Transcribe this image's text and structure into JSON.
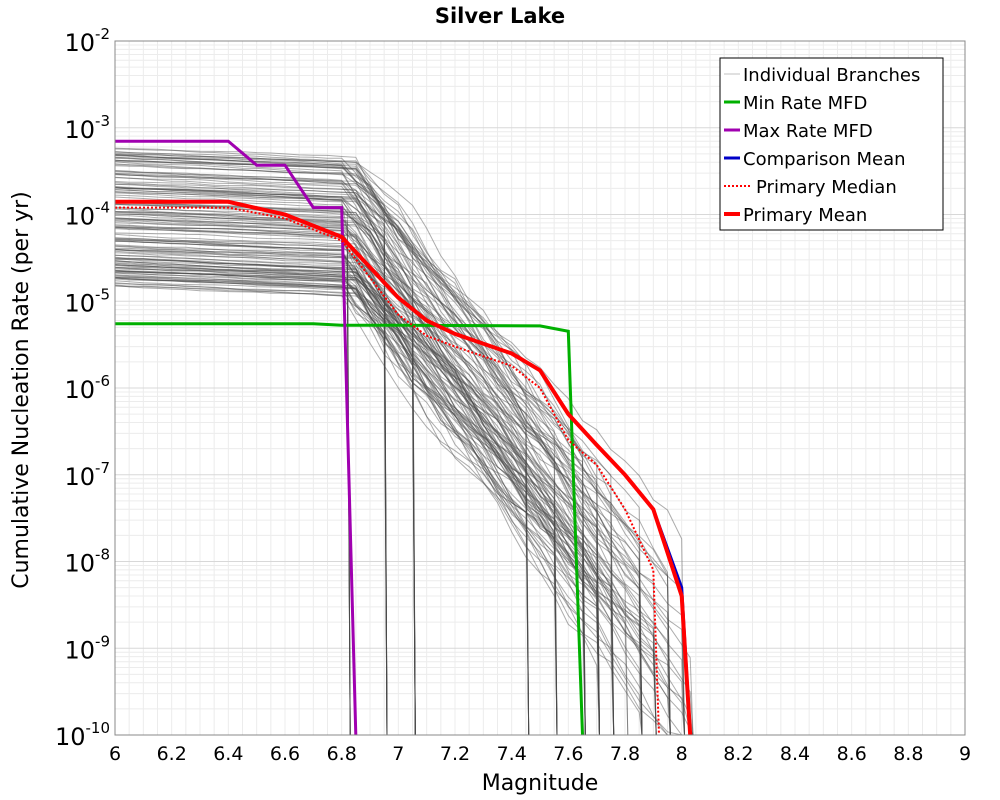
{
  "chart_data": {
    "type": "line",
    "title": "Silver Lake",
    "xlabel": "Magnitude",
    "ylabel": "Cumulative Nucleation Rate (per yr)",
    "xlim": [
      6,
      9
    ],
    "ylim": [
      1e-10,
      0.01
    ],
    "y_scale": "log",
    "grid": true,
    "legend_position": "top-right",
    "x_ticks": [
      "6",
      "6.2",
      "6.4",
      "6.6",
      "6.8",
      "7",
      "7.2",
      "7.4",
      "7.6",
      "7.8",
      "8",
      "8.2",
      "8.4",
      "8.6",
      "8.8",
      "9"
    ],
    "y_tick_exponents": [
      "-10",
      "-9",
      "-8",
      "-7",
      "-6",
      "-5",
      "-4",
      "-3",
      "-2"
    ],
    "y_tick_base": "10",
    "legend": [
      {
        "label": "Individual Branches",
        "color": "#c0c0c0",
        "style": "thin"
      },
      {
        "label": "Min Rate MFD",
        "color": "#00b000",
        "style": "solid"
      },
      {
        "label": "Max Rate MFD",
        "color": "#a000b0",
        "style": "solid"
      },
      {
        "label": "Comparison Mean",
        "color": "#0000c8",
        "style": "solid"
      },
      {
        "label": "Primary Median",
        "color": "#ff0000",
        "style": "dotted"
      },
      {
        "label": "Primary Mean",
        "color": "#ff0000",
        "style": "thick"
      }
    ],
    "series": [
      {
        "name": "Min Rate MFD",
        "color": "#00b000",
        "x": [
          6.0,
          6.7,
          6.8,
          7.0,
          7.5,
          7.6,
          7.65
        ],
        "y": [
          5.5e-06,
          5.5e-06,
          5.3e-06,
          5.3e-06,
          5.2e-06,
          4.5e-06,
          1e-10
        ]
      },
      {
        "name": "Max Rate MFD",
        "color": "#a000b0",
        "x": [
          6.0,
          6.4,
          6.5,
          6.6,
          6.7,
          6.8,
          6.85
        ],
        "y": [
          0.0007,
          0.0007,
          0.00037,
          0.00037,
          0.00012,
          0.00012,
          1e-10
        ]
      },
      {
        "name": "Comparison Mean",
        "color": "#0000c8",
        "x": [
          6.0,
          6.4,
          6.6,
          6.8,
          7.0,
          7.1,
          7.2,
          7.4,
          7.5,
          7.6,
          7.7,
          7.8,
          7.9,
          8.0,
          8.03
        ],
        "y": [
          0.00014,
          0.00014,
          0.0001,
          5.5e-05,
          1.1e-05,
          6e-06,
          4.2e-06,
          2.5e-06,
          1.6e-06,
          5e-07,
          2.2e-07,
          1e-07,
          4e-08,
          5e-09,
          1e-10
        ]
      },
      {
        "name": "Primary Median",
        "color": "#ff0000",
        "x": [
          6.0,
          6.4,
          6.6,
          6.8,
          7.0,
          7.1,
          7.2,
          7.4,
          7.5,
          7.6,
          7.7,
          7.8,
          7.9,
          7.92
        ],
        "y": [
          0.00012,
          0.00012,
          9e-05,
          5e-05,
          7e-06,
          4e-06,
          3e-06,
          1.8e-06,
          1e-06,
          2.5e-07,
          1.3e-07,
          4e-08,
          8e-09,
          1e-10
        ]
      },
      {
        "name": "Primary Mean",
        "color": "#ff0000",
        "x": [
          6.0,
          6.4,
          6.6,
          6.8,
          7.0,
          7.1,
          7.2,
          7.4,
          7.5,
          7.6,
          7.7,
          7.8,
          7.9,
          8.0,
          8.03
        ],
        "y": [
          0.00014,
          0.00014,
          0.0001,
          5.5e-05,
          1.1e-05,
          6e-06,
          4.2e-06,
          2.5e-06,
          1.6e-06,
          5e-07,
          2.2e-07,
          1e-07,
          4e-08,
          4e-09,
          1e-10
        ]
      }
    ],
    "branch_band": {
      "name": "Individual Branches",
      "count": 140,
      "rate_range_at_m6": [
        1.5e-05,
        0.0006
      ],
      "drop_magnitudes": [
        6.82,
        6.95,
        7.05,
        7.45,
        7.55,
        7.65,
        7.7,
        7.75,
        7.8,
        7.85,
        7.9,
        7.95,
        8.0,
        8.03
      ]
    }
  }
}
